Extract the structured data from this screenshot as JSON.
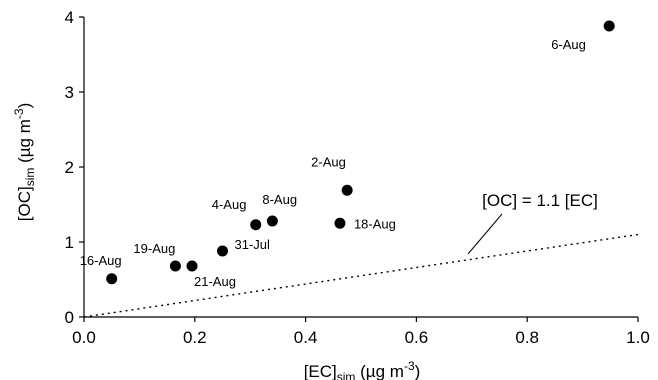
{
  "chart_data": {
    "type": "scatter",
    "xlim": [
      0,
      1.0
    ],
    "ylim": [
      0,
      4
    ],
    "x_ticks": [
      0.0,
      0.2,
      0.4,
      0.6,
      0.8,
      1.0
    ],
    "x_tick_labels": [
      "0.0",
      "0.2",
      "0.4",
      "0.6",
      "0.8",
      "1.0"
    ],
    "y_ticks": [
      0,
      1,
      2,
      3,
      4
    ],
    "y_tick_labels": [
      "0",
      "1",
      "2",
      "3",
      "4"
    ],
    "xlabel": {
      "main": "[EC]",
      "sub": "sim",
      "unit": " (µg m",
      "sup": "-3",
      "close": ")"
    },
    "ylabel": {
      "main": "[OC]",
      "sub": "sim",
      "unit": " (µg m",
      "sup": "-3",
      "close": ")"
    },
    "grid": false,
    "legend": "none",
    "marker_color": "#000000",
    "points": [
      {
        "label": "16-Aug",
        "x": 0.05,
        "y": 0.51
      },
      {
        "label": "19-Aug",
        "x": 0.165,
        "y": 0.68
      },
      {
        "label": "21-Aug",
        "x": 0.195,
        "y": 0.68
      },
      {
        "label": "31-Jul",
        "x": 0.25,
        "y": 0.88
      },
      {
        "label": "4-Aug",
        "x": 0.31,
        "y": 1.23
      },
      {
        "label": "8-Aug",
        "x": 0.34,
        "y": 1.28
      },
      {
        "label": "18-Aug",
        "x": 0.462,
        "y": 1.25
      },
      {
        "label": "2-Aug",
        "x": 0.475,
        "y": 1.69
      },
      {
        "label": "6-Aug",
        "x": 0.948,
        "y": 3.88
      }
    ],
    "reference_line": {
      "slope": 1.1,
      "style": "dotted",
      "label": "[OC] = 1.1 [EC]"
    }
  }
}
